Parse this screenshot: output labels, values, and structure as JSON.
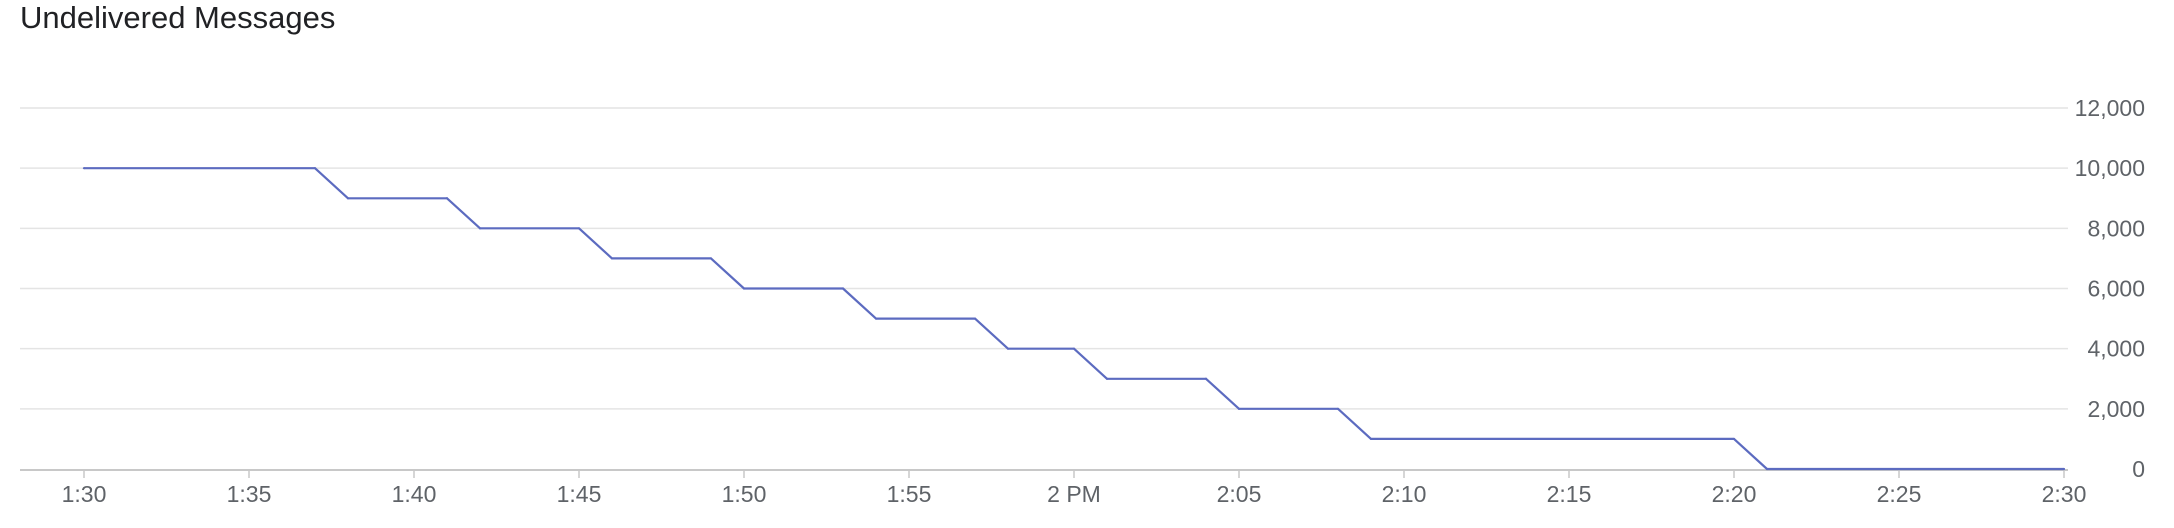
{
  "chart_data": {
    "type": "line",
    "title": "Undelivered Messages",
    "xlabel": "",
    "ylabel": "",
    "x_tick_labels": [
      "1:30",
      "1:35",
      "1:40",
      "1:45",
      "1:50",
      "1:55",
      "2 PM",
      "2:05",
      "2:10",
      "2:15",
      "2:20",
      "2:25",
      "2:30"
    ],
    "x_range_minutes": [
      0,
      60
    ],
    "y_tick_labels": [
      "0",
      "2,000",
      "4,000",
      "6,000",
      "8,000",
      "10,000",
      "12,000"
    ],
    "ylim": [
      0,
      12000
    ],
    "y_axis_position": "right",
    "grid": true,
    "series": [
      {
        "color": "#5c6bc0",
        "x_minutes": [
          0,
          7,
          8,
          11,
          12,
          15,
          16,
          19,
          20,
          23,
          24,
          27,
          28,
          30,
          31,
          34,
          35,
          38,
          39,
          50,
          51,
          60
        ],
        "values": [
          10000,
          10000,
          9000,
          9000,
          8000,
          8000,
          7000,
          7000,
          6000,
          6000,
          5000,
          5000,
          4000,
          4000,
          3000,
          3000,
          2000,
          2000,
          1000,
          1000,
          0,
          0
        ]
      }
    ]
  }
}
